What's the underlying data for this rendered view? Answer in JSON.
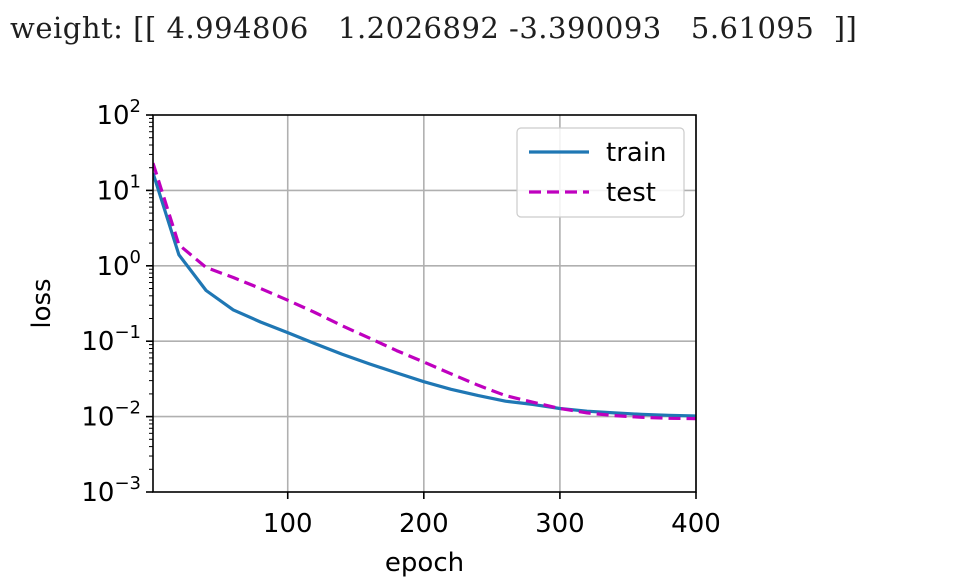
{
  "output": {
    "weight_text": "weight: [[ 4.994806   1.2026892 -3.390093   5.61095  ]]"
  },
  "chart_data": {
    "type": "line",
    "xlabel": "epoch",
    "ylabel": "loss",
    "xlim": [
      1,
      400
    ],
    "ylim": [
      0.001,
      100
    ],
    "yscale": "log",
    "grid": true,
    "legend_position": "top-right",
    "xticks": [
      "100",
      "200",
      "300",
      "400"
    ],
    "yticks": [
      {
        "value": 100,
        "base": "10",
        "exp": "2"
      },
      {
        "value": 10,
        "base": "10",
        "exp": "1"
      },
      {
        "value": 1,
        "base": "10",
        "exp": "0"
      },
      {
        "value": 0.1,
        "base": "10",
        "exp": "−1"
      },
      {
        "value": 0.01,
        "base": "10",
        "exp": "−2"
      },
      {
        "value": 0.001,
        "base": "10",
        "exp": "−3"
      }
    ],
    "series": [
      {
        "name": "train",
        "color": "#1f77b4",
        "dash": "solid",
        "x": [
          1,
          20,
          40,
          60,
          80,
          100,
          120,
          140,
          160,
          180,
          200,
          220,
          240,
          260,
          280,
          300,
          320,
          340,
          360,
          380,
          400
        ],
        "y": [
          17,
          1.4,
          0.47,
          0.26,
          0.18,
          0.13,
          0.093,
          0.067,
          0.05,
          0.038,
          0.029,
          0.023,
          0.019,
          0.016,
          0.0145,
          0.0128,
          0.0118,
          0.0112,
          0.0107,
          0.0104,
          0.0102
        ]
      },
      {
        "name": "test",
        "color": "#bf00bf",
        "dash": "dashed",
        "x": [
          1,
          20,
          40,
          60,
          80,
          100,
          120,
          140,
          160,
          180,
          200,
          220,
          240,
          260,
          280,
          300,
          320,
          340,
          360,
          380,
          400
        ],
        "y": [
          23,
          1.9,
          0.95,
          0.7,
          0.5,
          0.35,
          0.24,
          0.16,
          0.11,
          0.075,
          0.053,
          0.037,
          0.026,
          0.019,
          0.0155,
          0.0128,
          0.0112,
          0.0103,
          0.0098,
          0.0095,
          0.0094
        ]
      }
    ]
  }
}
